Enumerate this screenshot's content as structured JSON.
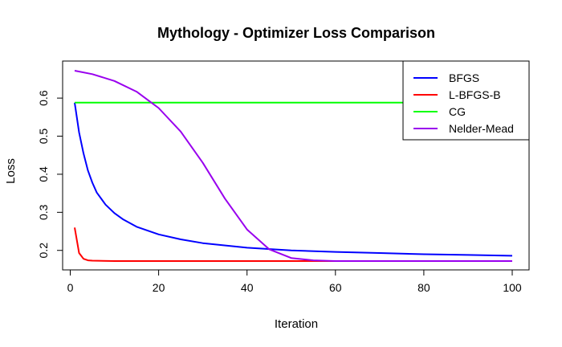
{
  "chart_data": {
    "type": "line",
    "title": "Mythology - Optimizer Loss Comparison",
    "xlabel": "Iteration",
    "ylabel": "Loss",
    "xlim": [
      1,
      100
    ],
    "ylim": [
      0.172,
      0.672
    ],
    "xticks": [
      0,
      20,
      40,
      60,
      80,
      100
    ],
    "yticks": [
      0.2,
      0.3,
      0.4,
      0.5,
      0.6
    ],
    "legend_position": "top-right",
    "series": [
      {
        "name": "BFGS",
        "color": "#0000ff",
        "points": [
          [
            1,
            0.588
          ],
          [
            2,
            0.51
          ],
          [
            3,
            0.455
          ],
          [
            4,
            0.41
          ],
          [
            5,
            0.378
          ],
          [
            6,
            0.352
          ],
          [
            8,
            0.32
          ],
          [
            10,
            0.298
          ],
          [
            12,
            0.281
          ],
          [
            15,
            0.262
          ],
          [
            20,
            0.242
          ],
          [
            25,
            0.229
          ],
          [
            30,
            0.219
          ],
          [
            40,
            0.207
          ],
          [
            50,
            0.2
          ],
          [
            60,
            0.196
          ],
          [
            70,
            0.193
          ],
          [
            80,
            0.19
          ],
          [
            90,
            0.188
          ],
          [
            100,
            0.186
          ]
        ]
      },
      {
        "name": "L-BFGS-B",
        "color": "#ff0000",
        "points": [
          [
            1,
            0.26
          ],
          [
            2,
            0.193
          ],
          [
            3,
            0.178
          ],
          [
            4,
            0.174
          ],
          [
            5,
            0.173
          ],
          [
            10,
            0.172
          ],
          [
            100,
            0.172
          ]
        ]
      },
      {
        "name": "CG",
        "color": "#00ff00",
        "points": [
          [
            1,
            0.588
          ],
          [
            100,
            0.588
          ]
        ]
      },
      {
        "name": "Nelder-Mead",
        "color": "#9900ee",
        "points": [
          [
            1,
            0.672
          ],
          [
            5,
            0.663
          ],
          [
            10,
            0.645
          ],
          [
            15,
            0.617
          ],
          [
            20,
            0.574
          ],
          [
            25,
            0.512
          ],
          [
            30,
            0.43
          ],
          [
            35,
            0.336
          ],
          [
            40,
            0.255
          ],
          [
            45,
            0.203
          ],
          [
            50,
            0.18
          ],
          [
            55,
            0.174
          ],
          [
            60,
            0.172
          ],
          [
            100,
            0.172
          ]
        ]
      }
    ]
  }
}
